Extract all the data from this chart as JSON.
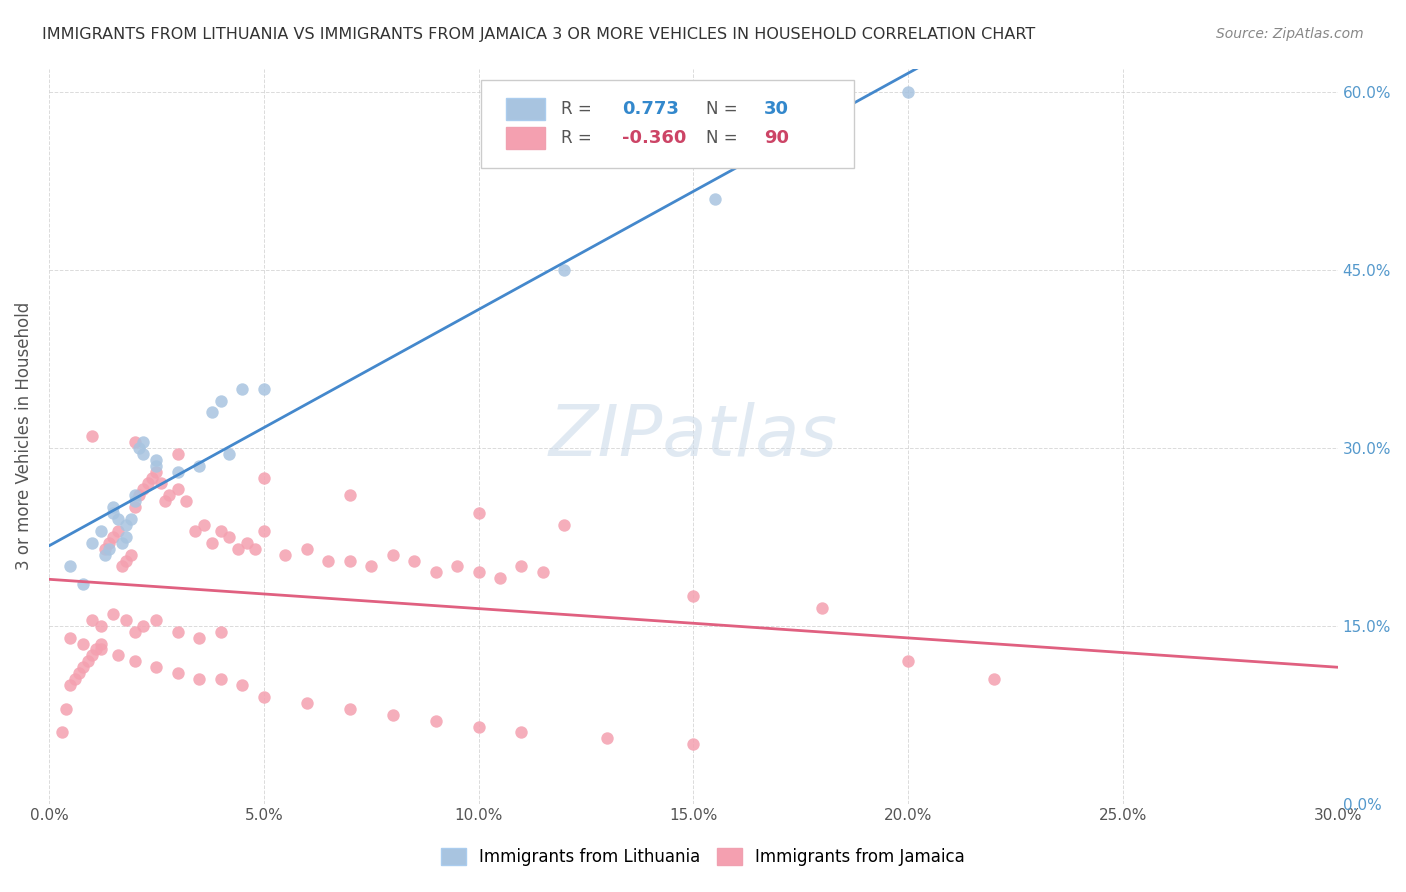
{
  "title": "IMMIGRANTS FROM LITHUANIA VS IMMIGRANTS FROM JAMAICA 3 OR MORE VEHICLES IN HOUSEHOLD CORRELATION CHART",
  "source": "Source: ZipAtlas.com",
  "xlabel_ticks": [
    "0.0%",
    "5.0%",
    "10.0%",
    "15.0%",
    "20.0%",
    "25.0%",
    "30.0%"
  ],
  "ylabel_left": "3 or more Vehicles in Household",
  "ylabel_right_ticks": [
    "0%",
    "15.0%",
    "30.0%",
    "45.0%",
    "60.0%"
  ],
  "xlim": [
    0.0,
    0.3
  ],
  "ylim": [
    0.0,
    0.62
  ],
  "legend_labels": [
    "Immigrants from Lithuania",
    "Immigrants from Jamaica"
  ],
  "legend_r_lithuania": "0.773",
  "legend_n_lithuania": "30",
  "legend_r_jamaica": "-0.360",
  "legend_n_jamaica": "90",
  "color_lithuania": "#a8c4e0",
  "color_jamaica": "#f4a0b0",
  "line_color_lithuania": "#4488cc",
  "line_color_jamaica": "#e06080",
  "watermark": "ZIPatlas",
  "background_color": "#ffffff",
  "grid_color": "#cccccc",
  "lithuania_x": [
    0.005,
    0.008,
    0.01,
    0.012,
    0.013,
    0.014,
    0.015,
    0.015,
    0.016,
    0.017,
    0.018,
    0.018,
    0.019,
    0.02,
    0.02,
    0.021,
    0.022,
    0.022,
    0.025,
    0.025,
    0.03,
    0.035,
    0.038,
    0.04,
    0.042,
    0.045,
    0.05,
    0.12,
    0.155,
    0.2
  ],
  "lithuania_y": [
    0.2,
    0.185,
    0.22,
    0.23,
    0.21,
    0.215,
    0.25,
    0.245,
    0.24,
    0.22,
    0.225,
    0.235,
    0.24,
    0.255,
    0.26,
    0.3,
    0.305,
    0.295,
    0.29,
    0.285,
    0.28,
    0.285,
    0.33,
    0.34,
    0.295,
    0.35,
    0.35,
    0.45,
    0.51,
    0.6
  ],
  "jamaica_x": [
    0.003,
    0.004,
    0.005,
    0.006,
    0.007,
    0.008,
    0.009,
    0.01,
    0.011,
    0.012,
    0.013,
    0.014,
    0.015,
    0.016,
    0.017,
    0.018,
    0.019,
    0.02,
    0.021,
    0.022,
    0.023,
    0.024,
    0.025,
    0.026,
    0.027,
    0.028,
    0.03,
    0.032,
    0.034,
    0.036,
    0.038,
    0.04,
    0.042,
    0.044,
    0.046,
    0.048,
    0.05,
    0.055,
    0.06,
    0.065,
    0.07,
    0.075,
    0.08,
    0.085,
    0.09,
    0.095,
    0.1,
    0.105,
    0.11,
    0.115,
    0.01,
    0.012,
    0.015,
    0.018,
    0.02,
    0.022,
    0.025,
    0.03,
    0.035,
    0.04,
    0.005,
    0.008,
    0.012,
    0.016,
    0.02,
    0.025,
    0.03,
    0.035,
    0.04,
    0.045,
    0.05,
    0.06,
    0.07,
    0.08,
    0.09,
    0.1,
    0.11,
    0.13,
    0.15,
    0.2,
    0.01,
    0.02,
    0.03,
    0.05,
    0.07,
    0.1,
    0.12,
    0.15,
    0.18,
    0.22
  ],
  "jamaica_y": [
    0.06,
    0.08,
    0.1,
    0.105,
    0.11,
    0.115,
    0.12,
    0.125,
    0.13,
    0.135,
    0.215,
    0.22,
    0.225,
    0.23,
    0.2,
    0.205,
    0.21,
    0.25,
    0.26,
    0.265,
    0.27,
    0.275,
    0.28,
    0.27,
    0.255,
    0.26,
    0.265,
    0.255,
    0.23,
    0.235,
    0.22,
    0.23,
    0.225,
    0.215,
    0.22,
    0.215,
    0.23,
    0.21,
    0.215,
    0.205,
    0.205,
    0.2,
    0.21,
    0.205,
    0.195,
    0.2,
    0.195,
    0.19,
    0.2,
    0.195,
    0.155,
    0.15,
    0.16,
    0.155,
    0.145,
    0.15,
    0.155,
    0.145,
    0.14,
    0.145,
    0.14,
    0.135,
    0.13,
    0.125,
    0.12,
    0.115,
    0.11,
    0.105,
    0.105,
    0.1,
    0.09,
    0.085,
    0.08,
    0.075,
    0.07,
    0.065,
    0.06,
    0.055,
    0.05,
    0.12,
    0.31,
    0.305,
    0.295,
    0.275,
    0.26,
    0.245,
    0.235,
    0.175,
    0.165,
    0.105
  ]
}
